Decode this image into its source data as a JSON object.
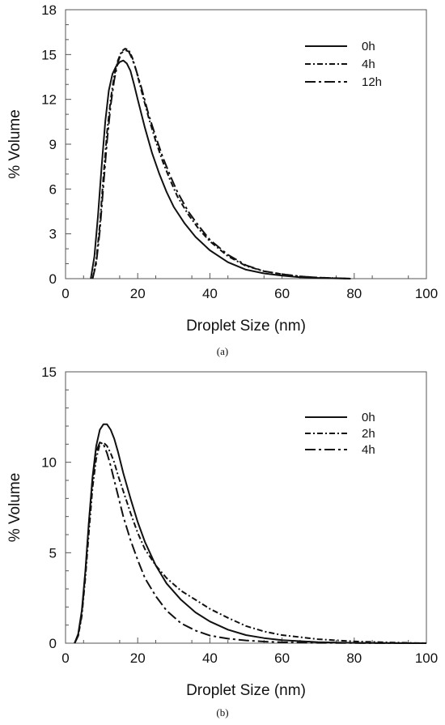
{
  "chart_data": [
    {
      "type": "line",
      "panel_label": "(a)",
      "xlabel": "Droplet Size (nm)",
      "ylabel": "% Volume",
      "xlim": [
        0,
        100
      ],
      "ylim": [
        0,
        18
      ],
      "xticks": [
        0,
        20,
        40,
        60,
        80,
        100
      ],
      "yticks": [
        0,
        3,
        6,
        9,
        12,
        15,
        18
      ],
      "legend": "top-right",
      "grid": false,
      "series": [
        {
          "name": "0h",
          "style": "solid",
          "x": [
            7,
            8,
            9,
            10,
            11,
            12,
            13,
            14,
            15,
            16,
            17,
            18,
            19,
            20,
            22,
            24,
            26,
            28,
            30,
            33,
            36,
            40,
            45,
            50,
            55,
            60,
            65,
            70,
            75,
            79
          ],
          "y": [
            0,
            1.5,
            4.2,
            7.5,
            10.5,
            12.6,
            13.7,
            14.2,
            14.5,
            14.6,
            14.4,
            13.9,
            13.0,
            12.0,
            10.1,
            8.4,
            7.0,
            5.8,
            4.8,
            3.7,
            2.8,
            1.9,
            1.1,
            0.6,
            0.35,
            0.2,
            0.1,
            0.05,
            0.02,
            0
          ]
        },
        {
          "name": "4h",
          "style": "dash-dot",
          "x": [
            7.5,
            8.5,
            9.5,
            10.5,
            11.5,
            12.5,
            13.5,
            14.5,
            15.5,
            16.5,
            17.5,
            18.5,
            19.5,
            21,
            23,
            25,
            27,
            29,
            31,
            34,
            37,
            40,
            45,
            50,
            55,
            60,
            65,
            70,
            75,
            79
          ],
          "y": [
            0,
            1.2,
            3.6,
            6.8,
            9.8,
            12.0,
            13.6,
            14.6,
            15.2,
            15.4,
            15.3,
            14.8,
            14.0,
            12.6,
            10.8,
            9.2,
            7.8,
            6.6,
            5.5,
            4.3,
            3.3,
            2.5,
            1.5,
            0.85,
            0.5,
            0.3,
            0.15,
            0.07,
            0.03,
            0
          ]
        },
        {
          "name": "12h",
          "style": "long-dash-dot",
          "x": [
            7.5,
            8.5,
            9.5,
            10.5,
            11.5,
            12.5,
            13.5,
            14.5,
            15.5,
            16.5,
            17.5,
            18.5,
            19.5,
            21,
            23,
            25,
            27,
            29,
            31,
            34,
            37,
            40,
            45,
            50,
            55,
            60,
            65,
            70,
            75,
            79
          ],
          "y": [
            0,
            1.0,
            3.2,
            6.2,
            9.2,
            11.6,
            13.3,
            14.5,
            15.1,
            15.3,
            15.2,
            14.7,
            14.0,
            12.8,
            11.0,
            9.5,
            8.1,
            6.9,
            5.8,
            4.5,
            3.5,
            2.6,
            1.6,
            0.9,
            0.5,
            0.3,
            0.15,
            0.07,
            0.03,
            0
          ]
        }
      ]
    },
    {
      "type": "line",
      "panel_label": "(b)",
      "xlabel": "Droplet Size (nm)",
      "ylabel": "% Volume",
      "xlim": [
        0,
        100
      ],
      "ylim": [
        0,
        15
      ],
      "xticks": [
        0,
        20,
        40,
        60,
        80,
        100
      ],
      "yticks": [
        0,
        5,
        10,
        15
      ],
      "legend": "top-right",
      "grid": false,
      "series": [
        {
          "name": "0h",
          "style": "solid",
          "x": [
            2.5,
            3.5,
            4.5,
            5.5,
            6.5,
            7.5,
            8.5,
            9.5,
            10.5,
            11.5,
            12.5,
            13.5,
            14.5,
            16,
            18,
            20,
            22,
            25,
            28,
            32,
            36,
            40,
            45,
            50,
            55,
            60,
            70,
            80,
            90,
            100
          ],
          "y": [
            0,
            0.5,
            1.8,
            4.0,
            6.8,
            9.2,
            10.9,
            11.8,
            12.1,
            12.1,
            11.8,
            11.3,
            10.6,
            9.4,
            8.0,
            6.7,
            5.6,
            4.3,
            3.3,
            2.4,
            1.7,
            1.2,
            0.75,
            0.45,
            0.28,
            0.17,
            0.06,
            0.02,
            0.005,
            0
          ]
        },
        {
          "name": "2h",
          "style": "dash-dot",
          "x": [
            2.5,
            3.5,
            4.5,
            5.5,
            6.5,
            7.5,
            8.5,
            9.5,
            10.5,
            11.5,
            12.5,
            13.5,
            14.5,
            16,
            18,
            20,
            22,
            25,
            28,
            32,
            36,
            40,
            45,
            50,
            55,
            60,
            70,
            80,
            90,
            100
          ],
          "y": [
            0,
            0.4,
            1.5,
            3.6,
            6.2,
            8.6,
            10.2,
            11.0,
            11.1,
            10.9,
            10.5,
            10.0,
            9.3,
            8.4,
            7.2,
            6.1,
            5.2,
            4.3,
            3.6,
            2.9,
            2.4,
            1.9,
            1.4,
            0.95,
            0.65,
            0.45,
            0.22,
            0.1,
            0.04,
            0
          ]
        },
        {
          "name": "4h",
          "style": "long-dash-dot",
          "x": [
            2.5,
            3.5,
            4.5,
            5.5,
            6.5,
            7.5,
            8.5,
            9.5,
            10.5,
            11.5,
            12.5,
            13.5,
            14.5,
            16,
            18,
            20,
            22,
            25,
            28,
            32,
            36,
            40,
            45,
            50,
            55,
            60,
            70,
            80,
            90,
            100
          ],
          "y": [
            0,
            0.4,
            1.6,
            3.9,
            6.7,
            9.1,
            10.6,
            11.1,
            11.0,
            10.5,
            9.8,
            9.0,
            8.2,
            7.0,
            5.7,
            4.6,
            3.6,
            2.6,
            1.8,
            1.1,
            0.7,
            0.42,
            0.25,
            0.15,
            0.09,
            0.05,
            0.02,
            0.01,
            0.004,
            0
          ]
        }
      ]
    }
  ]
}
